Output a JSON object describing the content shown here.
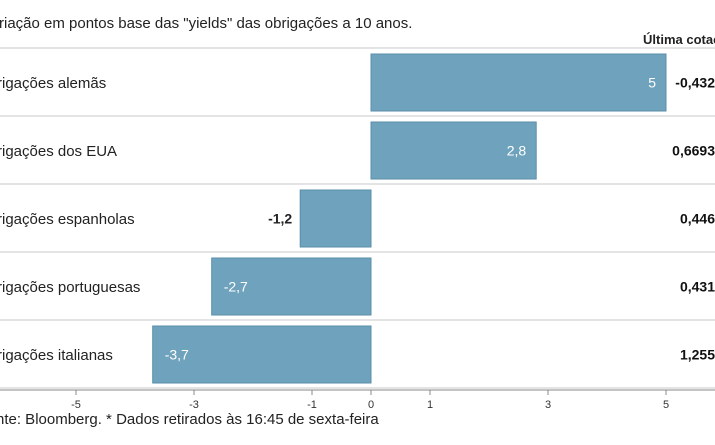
{
  "title": "riação em pontos base das \"yields\" das obrigações a 10 anos.",
  "last_quote_header": "Última cotaç",
  "footnote": "nte: Bloomberg.  * Dados retirados às 16:45 de sexta-feira",
  "colors": {
    "bar": "#6fa3bd",
    "bar_border": "#5b8ea8",
    "grid": "#c8c8c8",
    "axis": "#888888"
  },
  "chart_data": {
    "type": "bar",
    "orientation": "horizontal",
    "title": "",
    "xlabel": "",
    "ylabel": "",
    "categories": [
      "rigações alemãs",
      "rigações dos EUA",
      "rigações espanholas",
      "rigações portuguesas",
      "rigações italianas"
    ],
    "values": [
      5,
      2.8,
      -1.2,
      -2.7,
      -3.7
    ],
    "value_labels": [
      "5",
      "2,8",
      "-1,2",
      "-2,7",
      "-3,7"
    ],
    "last_quote": [
      "-0,432",
      "0,6693",
      "0,446",
      "0,431",
      "1,255"
    ],
    "xlim": [
      -5,
      5
    ],
    "x_ticks": [
      -5,
      -3,
      -1,
      0,
      1,
      3,
      5
    ],
    "x_tick_labels": [
      "-5",
      "-3",
      "-1",
      "0",
      "1",
      "3",
      "5"
    ],
    "grid": false
  }
}
